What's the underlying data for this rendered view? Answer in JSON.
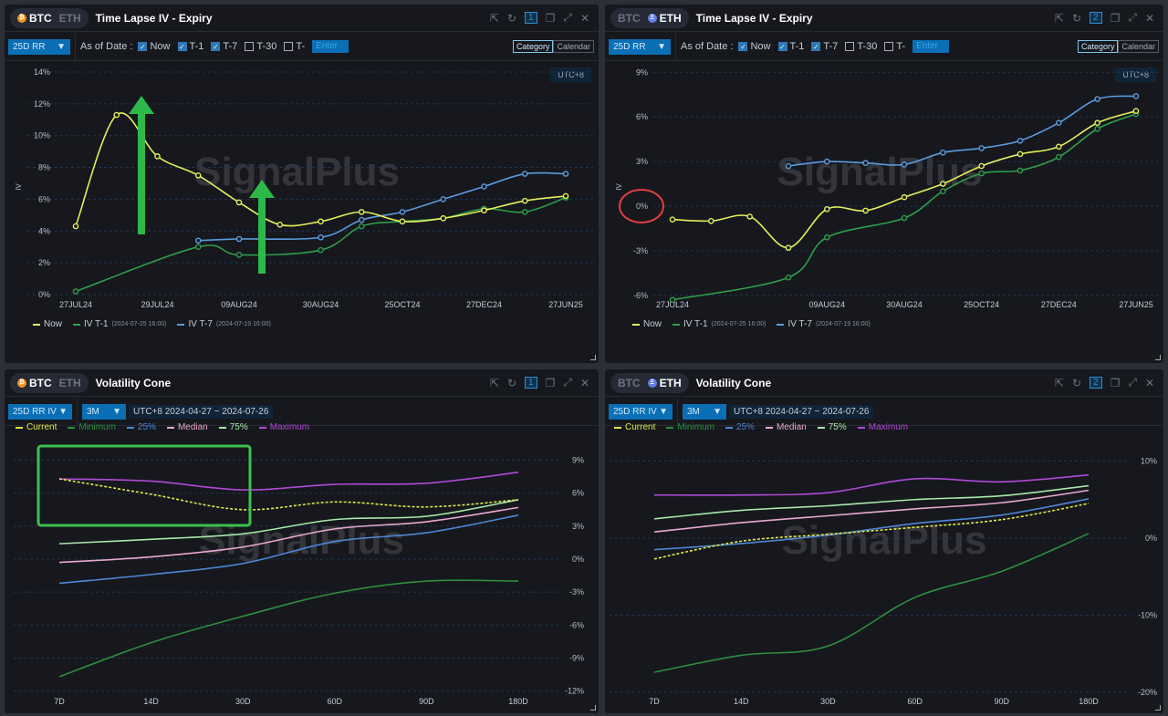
{
  "watermark": "SignalPlus",
  "colors": {
    "now": "#e6ef5c",
    "t1": "#2f9e4a",
    "t7": "#5b9be0",
    "current": "#e0e84a",
    "minimum": "#2d8f3e",
    "p25": "#4d86d6",
    "median": "#e8a8d0",
    "p75": "#a8e8a8",
    "maximum": "#b04ad6",
    "accent": "#0a6fb4"
  },
  "panels": [
    {
      "coins": [
        "BTC",
        "ETH"
      ],
      "active": "BTC",
      "title": "Time Lapse IV - Expiry",
      "window_num": "1",
      "dropdown": "25D RR",
      "as_of_label": "As of Date :",
      "checks": [
        {
          "label": "Now",
          "on": true
        },
        {
          "label": "T-1",
          "on": true
        },
        {
          "label": "T-7",
          "on": true
        },
        {
          "label": "T-30",
          "on": false
        },
        {
          "label": "T-",
          "on": false
        }
      ],
      "enter_placeholder": "Enter",
      "view_modes": [
        "Category",
        "Calendar"
      ],
      "view_active": "Category",
      "timezone": "UTC+8",
      "legend": [
        {
          "label": "Now",
          "sub": "",
          "key": "now"
        },
        {
          "label": "IV T-1",
          "sub": "(2024-07-25 16:00)",
          "key": "t1"
        },
        {
          "label": "IV T-7",
          "sub": "(2024-07-19 16:00)",
          "key": "t7"
        }
      ],
      "chart_data": {
        "type": "line",
        "ylabel": "IV",
        "ylim": [
          0,
          14
        ],
        "yticks": [
          "0%",
          "2%",
          "4%",
          "6%",
          "8%",
          "10%",
          "12%",
          "14%"
        ],
        "x_labels": [
          "27JUL24",
          "",
          "29JUL24",
          "",
          "09AUG24",
          "",
          "30AUG24",
          "",
          "25OCT24",
          "",
          "27DEC24",
          "",
          "27JUN25"
        ],
        "series": [
          {
            "name": "Now",
            "key": "now",
            "values": [
              4.3,
              11.3,
              8.7,
              7.5,
              5.8,
              4.4,
              4.6,
              5.2,
              4.6,
              4.8,
              5.3,
              5.9,
              6.2
            ]
          },
          {
            "name": "IV T-1",
            "key": "t1",
            "values": [
              0.2,
              null,
              null,
              3.0,
              2.5,
              null,
              2.8,
              4.3,
              4.6,
              4.8,
              5.4,
              5.2,
              6.1
            ]
          },
          {
            "name": "IV T-7",
            "key": "t7",
            "values": [
              null,
              null,
              null,
              3.4,
              3.5,
              null,
              3.6,
              4.7,
              5.2,
              6.0,
              6.8,
              7.6,
              7.6
            ]
          }
        ]
      }
    },
    {
      "coins": [
        "BTC",
        "ETH"
      ],
      "active": "ETH",
      "title": "Time Lapse IV - Expiry",
      "window_num": "2",
      "dropdown": "25D RR",
      "as_of_label": "As of Date :",
      "checks": [
        {
          "label": "Now",
          "on": true
        },
        {
          "label": "T-1",
          "on": true
        },
        {
          "label": "T-7",
          "on": true
        },
        {
          "label": "T-30",
          "on": false
        },
        {
          "label": "T-",
          "on": false
        }
      ],
      "enter_placeholder": "Enter",
      "view_modes": [
        "Category",
        "Calendar"
      ],
      "view_active": "Category",
      "timezone": "UTC+8",
      "legend": [
        {
          "label": "Now",
          "sub": "",
          "key": "now"
        },
        {
          "label": "IV T-1",
          "sub": "(2024-07-25 16:00)",
          "key": "t1"
        },
        {
          "label": "IV T-7",
          "sub": "(2024-07-19 16:00)",
          "key": "t7"
        }
      ],
      "chart_data": {
        "type": "line",
        "ylabel": "IV",
        "ylim": [
          -6,
          9
        ],
        "yticks": [
          "-6%",
          "-3%",
          "0%",
          "3%",
          "6%",
          "9%"
        ],
        "x_labels": [
          "27JUL24",
          "",
          "",
          "",
          "09AUG24",
          "",
          "30AUG24",
          "",
          "25OCT24",
          "",
          "27DEC24",
          "",
          "27JUN25"
        ],
        "series": [
          {
            "name": "Now",
            "key": "now",
            "values": [
              -0.9,
              -1.0,
              -0.7,
              -2.8,
              -0.2,
              -0.3,
              0.6,
              1.5,
              2.7,
              3.5,
              4.0,
              5.6,
              6.4
            ]
          },
          {
            "name": "IV T-1",
            "key": "t1",
            "values": [
              -6.3,
              null,
              null,
              -4.8,
              -2.1,
              null,
              -0.8,
              1.0,
              2.2,
              2.4,
              3.3,
              5.2,
              6.2
            ]
          },
          {
            "name": "IV T-7",
            "key": "t7",
            "values": [
              null,
              null,
              null,
              2.7,
              3.0,
              2.9,
              2.8,
              3.6,
              3.9,
              4.4,
              5.6,
              7.2,
              7.4
            ]
          }
        ]
      }
    },
    {
      "coins": [
        "BTC",
        "ETH"
      ],
      "active": "BTC",
      "title": "Volatility Cone",
      "window_num": "1",
      "dropdown": "25D RR IV",
      "period": "3M",
      "range": "UTC+8 2024-04-27 ~ 2024-07-26",
      "legend": [
        {
          "label": "Current",
          "key": "current"
        },
        {
          "label": "Minimum",
          "key": "minimum"
        },
        {
          "label": "25%",
          "key": "p25"
        },
        {
          "label": "Median",
          "key": "median"
        },
        {
          "label": "75%",
          "key": "p75"
        },
        {
          "label": "Maximum",
          "key": "maximum"
        }
      ],
      "chart_data": {
        "type": "line",
        "ylim": [
          -12,
          9
        ],
        "yticks": [
          "-12%",
          "-9%",
          "-6%",
          "-3%",
          "0%",
          "3%",
          "6%",
          "9%"
        ],
        "categories": [
          "7D",
          "14D",
          "30D",
          "60D",
          "90D",
          "180D"
        ],
        "series": [
          {
            "name": "Current",
            "key": "current",
            "values": [
              7.3,
              5.9,
              4.5,
              5.2,
              4.75,
              5.4
            ]
          },
          {
            "name": "Minimum",
            "key": "minimum",
            "values": [
              -10.7,
              -7.6,
              -5.2,
              -3.1,
              -2.0,
              -2.0
            ]
          },
          {
            "name": "25%",
            "key": "p25",
            "values": [
              -2.2,
              -1.4,
              -0.4,
              1.6,
              2.4,
              4.0
            ]
          },
          {
            "name": "Median",
            "key": "median",
            "values": [
              -0.3,
              0.2,
              1.1,
              2.75,
              3.4,
              4.7
            ]
          },
          {
            "name": "75%",
            "key": "p75",
            "values": [
              1.4,
              1.8,
              2.3,
              3.6,
              3.9,
              5.4
            ]
          },
          {
            "name": "Maximum",
            "key": "maximum",
            "values": [
              7.3,
              7.1,
              6.3,
              6.8,
              6.9,
              7.9
            ]
          }
        ]
      }
    },
    {
      "coins": [
        "BTC",
        "ETH"
      ],
      "active": "ETH",
      "title": "Volatility Cone",
      "window_num": "2",
      "dropdown": "25D RR IV",
      "period": "3M",
      "range": "UTC+8 2024-04-27 ~ 2024-07-26",
      "legend": [
        {
          "label": "Current",
          "key": "current"
        },
        {
          "label": "Minimum",
          "key": "minimum"
        },
        {
          "label": "25%",
          "key": "p25"
        },
        {
          "label": "Median",
          "key": "median"
        },
        {
          "label": "75%",
          "key": "p75"
        },
        {
          "label": "Maximum",
          "key": "maximum"
        }
      ],
      "chart_data": {
        "type": "line",
        "ylim": [
          -20,
          10
        ],
        "yticks": [
          "-20%",
          "-10%",
          "0%",
          "10%"
        ],
        "categories": [
          "7D",
          "14D",
          "30D",
          "60D",
          "90D",
          "180D"
        ],
        "series": [
          {
            "name": "Current",
            "key": "current",
            "values": [
              -2.7,
              -0.4,
              0.5,
              1.4,
              2.4,
              4.5
            ]
          },
          {
            "name": "Minimum",
            "key": "minimum",
            "values": [
              -17.4,
              -15.2,
              -14.0,
              -7.7,
              -4.3,
              0.6
            ]
          },
          {
            "name": "25%",
            "key": "p25",
            "values": [
              -1.5,
              -0.7,
              0.4,
              1.9,
              3.0,
              5.1
            ]
          },
          {
            "name": "Median",
            "key": "median",
            "values": [
              0.8,
              2.0,
              2.9,
              3.8,
              4.6,
              6.2
            ]
          },
          {
            "name": "75%",
            "key": "p75",
            "values": [
              2.5,
              3.6,
              4.2,
              5.0,
              5.5,
              6.8
            ]
          },
          {
            "name": "Maximum",
            "key": "maximum",
            "values": [
              5.6,
              5.6,
              5.9,
              7.7,
              7.3,
              8.2
            ]
          }
        ]
      }
    }
  ]
}
